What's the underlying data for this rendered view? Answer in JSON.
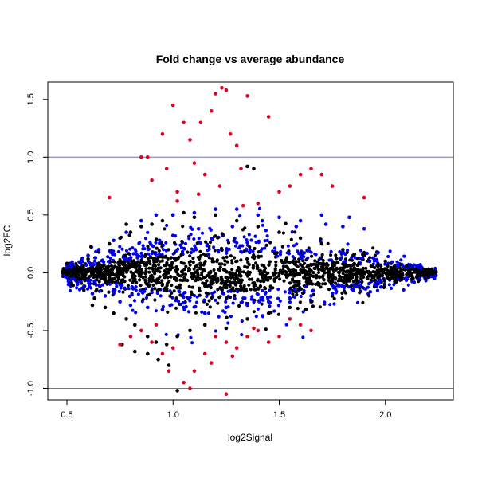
{
  "chart_data": {
    "type": "scatter",
    "title": "Fold change vs average abundance",
    "xlabel": "log2Signal",
    "ylabel": "log2FC",
    "xlim": [
      0.41,
      2.32
    ],
    "ylim": [
      -1.1,
      1.65
    ],
    "x_ticks": [
      {
        "value": 0.5,
        "label": "0.5"
      },
      {
        "value": 1.0,
        "label": "1.0"
      },
      {
        "value": 1.5,
        "label": "1.5"
      },
      {
        "value": 2.0,
        "label": "2.0"
      }
    ],
    "y_ticks": [
      {
        "value": -1.0,
        "label": "-1.0"
      },
      {
        "value": -0.5,
        "label": "-0.5"
      },
      {
        "value": 0.0,
        "label": "0.0"
      },
      {
        "value": 0.5,
        "label": "0.5"
      },
      {
        "value": 1.0,
        "label": "1.0"
      },
      {
        "value": 1.5,
        "label": "1.5"
      }
    ],
    "reference_lines": [
      {
        "axis": "y",
        "value": 1.0,
        "color": "#6666ff"
      },
      {
        "axis": "y",
        "value": -1.0,
        "color": "#6666ff"
      }
    ],
    "grid": false,
    "legend": "none",
    "series": [
      {
        "color": "#000000",
        "points": [
          [
            0.5,
            0.08
          ],
          [
            0.52,
            -0.1
          ],
          [
            0.55,
            0.05
          ],
          [
            0.58,
            -0.15
          ],
          [
            0.6,
            0.12
          ],
          [
            0.63,
            -0.22
          ],
          [
            0.65,
            0.18
          ],
          [
            0.68,
            -0.3
          ],
          [
            0.7,
            0.25
          ],
          [
            0.72,
            -0.35
          ],
          [
            0.75,
            0.3
          ],
          [
            0.78,
            -0.4
          ],
          [
            0.8,
            0.35
          ],
          [
            0.82,
            -0.45
          ],
          [
            0.85,
            0.4
          ],
          [
            0.88,
            -0.55
          ],
          [
            0.9,
            0.42
          ],
          [
            0.92,
            -0.6
          ],
          [
            0.95,
            0.45
          ],
          [
            0.97,
            -0.62
          ],
          [
            1.0,
            0.5
          ],
          [
            1.02,
            -0.55
          ],
          [
            1.05,
            0.52
          ],
          [
            1.08,
            -0.5
          ],
          [
            1.1,
            0.48
          ],
          [
            1.15,
            -0.45
          ],
          [
            1.2,
            0.5
          ],
          [
            1.25,
            -0.48
          ],
          [
            1.3,
            0.45
          ],
          [
            1.35,
            -0.4
          ],
          [
            1.4,
            0.4
          ],
          [
            1.45,
            -0.35
          ],
          [
            1.5,
            0.35
          ],
          [
            1.55,
            -0.3
          ],
          [
            1.6,
            0.3
          ],
          [
            1.65,
            -0.25
          ],
          [
            1.7,
            0.25
          ],
          [
            1.75,
            -0.2
          ],
          [
            1.8,
            0.2
          ],
          [
            1.85,
            -0.15
          ],
          [
            1.9,
            0.15
          ],
          [
            1.95,
            -0.12
          ],
          [
            2.0,
            0.1
          ],
          [
            2.05,
            -0.08
          ],
          [
            2.1,
            0.06
          ],
          [
            2.15,
            -0.04
          ],
          [
            2.2,
            0.02
          ],
          [
            2.23,
            0.01
          ],
          [
            2.22,
            -0.01
          ],
          [
            2.18,
            0.03
          ],
          [
            0.76,
            -0.62
          ],
          [
            0.82,
            -0.68
          ],
          [
            0.88,
            -0.7
          ],
          [
            0.93,
            -0.75
          ],
          [
            0.98,
            -0.8
          ],
          [
            1.02,
            -1.02
          ],
          [
            1.35,
            0.92
          ],
          [
            1.38,
            0.9
          ],
          [
            0.78,
            0.42
          ],
          [
            0.62,
            -0.28
          ]
        ]
      },
      {
        "color": "#0000ee",
        "points": [
          [
            0.52,
            0.05
          ],
          [
            0.55,
            -0.1
          ],
          [
            0.6,
            0.15
          ],
          [
            0.62,
            -0.18
          ],
          [
            0.65,
            0.2
          ],
          [
            0.68,
            -0.2
          ],
          [
            0.72,
            0.28
          ],
          [
            0.75,
            -0.25
          ],
          [
            0.78,
            0.35
          ],
          [
            0.8,
            -0.28
          ],
          [
            0.85,
            0.45
          ],
          [
            0.88,
            -0.3
          ],
          [
            0.92,
            0.5
          ],
          [
            0.95,
            -0.32
          ],
          [
            1.0,
            0.5
          ],
          [
            1.05,
            -0.3
          ],
          [
            1.1,
            0.52
          ],
          [
            1.15,
            -0.35
          ],
          [
            1.2,
            0.55
          ],
          [
            1.25,
            -0.3
          ],
          [
            1.3,
            0.55
          ],
          [
            1.35,
            -0.28
          ],
          [
            1.4,
            0.5
          ],
          [
            1.45,
            -0.25
          ],
          [
            1.5,
            0.48
          ],
          [
            1.55,
            -0.22
          ],
          [
            1.6,
            0.45
          ],
          [
            1.65,
            -0.2
          ],
          [
            1.7,
            0.5
          ],
          [
            1.75,
            -0.18
          ],
          [
            1.8,
            0.4
          ],
          [
            1.85,
            -0.15
          ],
          [
            1.9,
            0.38
          ],
          [
            1.95,
            -0.1
          ],
          [
            1.83,
            0.48
          ],
          [
            1.72,
            0.42
          ],
          [
            1.58,
            0.4
          ],
          [
            1.42,
            0.45
          ],
          [
            1.28,
            0.4
          ],
          [
            1.12,
            0.38
          ]
        ]
      },
      {
        "color": "#dd0022",
        "points": [
          [
            0.85,
            1.0
          ],
          [
            0.88,
            1.0
          ],
          [
            0.9,
            0.8
          ],
          [
            0.95,
            1.2
          ],
          [
            0.97,
            0.9
          ],
          [
            1.0,
            1.45
          ],
          [
            1.02,
            0.7
          ],
          [
            1.05,
            1.3
          ],
          [
            1.08,
            1.15
          ],
          [
            1.1,
            0.95
          ],
          [
            1.13,
            1.3
          ],
          [
            1.15,
            0.85
          ],
          [
            1.18,
            1.4
          ],
          [
            1.2,
            1.55
          ],
          [
            1.23,
            1.6
          ],
          [
            1.25,
            1.58
          ],
          [
            1.27,
            1.2
          ],
          [
            1.3,
            1.1
          ],
          [
            1.32,
            0.9
          ],
          [
            1.35,
            1.53
          ],
          [
            1.4,
            0.6
          ],
          [
            1.45,
            1.35
          ],
          [
            1.5,
            0.7
          ],
          [
            1.55,
            0.75
          ],
          [
            1.6,
            0.85
          ],
          [
            1.65,
            0.9
          ],
          [
            1.7,
            0.85
          ],
          [
            1.75,
            0.75
          ],
          [
            1.9,
            0.65
          ],
          [
            0.7,
            0.65
          ],
          [
            0.75,
            -0.62
          ],
          [
            0.8,
            -0.55
          ],
          [
            0.85,
            -0.5
          ],
          [
            0.9,
            -0.6
          ],
          [
            0.95,
            -0.7
          ],
          [
            1.0,
            -0.65
          ],
          [
            1.05,
            -0.95
          ],
          [
            1.1,
            -0.85
          ],
          [
            1.15,
            -0.7
          ],
          [
            1.2,
            -0.55
          ],
          [
            1.25,
            -0.6
          ],
          [
            1.3,
            -0.65
          ],
          [
            1.35,
            -0.55
          ],
          [
            1.4,
            -0.5
          ],
          [
            1.45,
            -0.6
          ],
          [
            1.5,
            -0.55
          ],
          [
            1.55,
            -0.4
          ],
          [
            1.6,
            -0.45
          ],
          [
            1.65,
            -0.5
          ],
          [
            1.25,
            -1.05
          ],
          [
            0.98,
            -0.85
          ],
          [
            1.08,
            -1.0
          ],
          [
            1.18,
            -0.78
          ],
          [
            1.28,
            -0.72
          ],
          [
            1.38,
            -0.48
          ],
          [
            0.92,
            -0.45
          ],
          [
            1.02,
            0.62
          ],
          [
            1.22,
            0.75
          ],
          [
            1.12,
            0.68
          ],
          [
            1.33,
            0.58
          ]
        ]
      }
    ]
  }
}
